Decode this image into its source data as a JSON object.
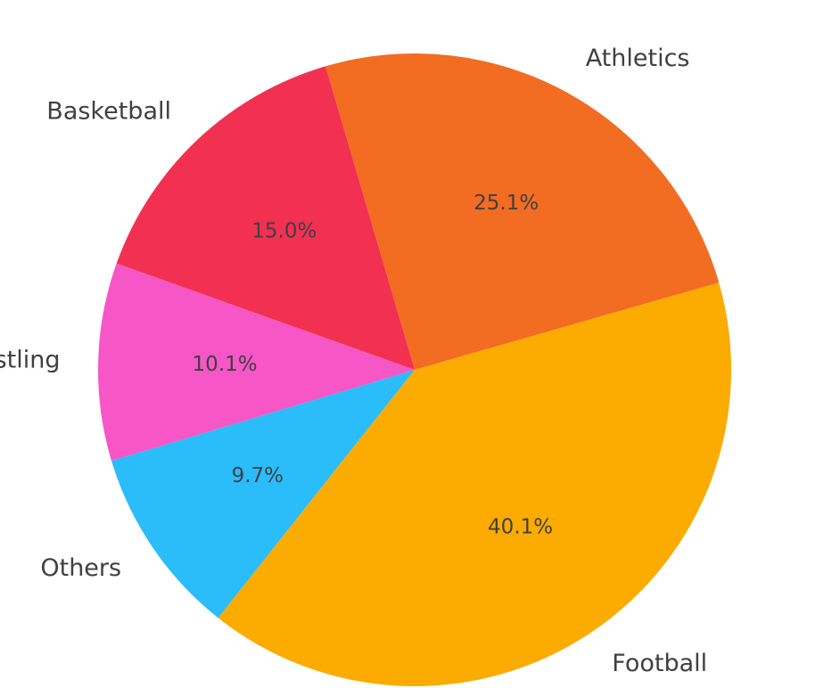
{
  "chart_data": {
    "type": "pie",
    "start_angle_deg": 16,
    "direction": "counterclockwise",
    "slices": [
      {
        "label": "Athletics",
        "value": 25.1,
        "pct_label": "25.1%",
        "color": "#F26C22"
      },
      {
        "label": "Basketball",
        "value": 15.0,
        "pct_label": "15.0%",
        "color": "#F23051"
      },
      {
        "label": "Wrestling",
        "value": 10.1,
        "pct_label": "10.1%",
        "color": "#F756C6"
      },
      {
        "label": "Others",
        "value": 9.7,
        "pct_label": "9.7%",
        "color": "#2BBCFA"
      },
      {
        "label": "Football",
        "value": 40.1,
        "pct_label": "40.1%",
        "color": "#FCAB00"
      }
    ]
  }
}
